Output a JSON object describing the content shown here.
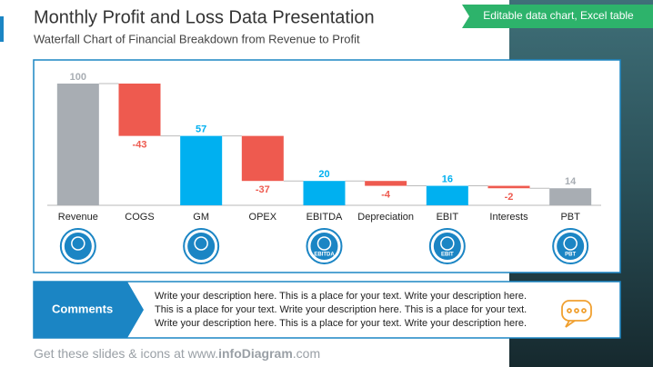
{
  "header": {
    "title": "Monthly Profit and Loss Data Presentation",
    "subtitle": "Waterfall Chart of Financial Breakdown from Revenue to Profit",
    "tag": "Editable data chart, Excel table"
  },
  "chart_data": {
    "type": "waterfall",
    "categories": [
      "Revenue",
      "COGS",
      "GM",
      "OPEX",
      "EBITDA",
      "Depreciation",
      "EBIT",
      "Interests",
      "PBT"
    ],
    "values": [
      100,
      -43,
      57,
      -37,
      20,
      -4,
      16,
      -2,
      14
    ],
    "colors": [
      "#a8adb3",
      "#ee5a4f",
      "#00b0f0",
      "#ee5a4f",
      "#00b0f0",
      "#ee5a4f",
      "#00b0f0",
      "#ee5a4f",
      "#a8adb3"
    ],
    "icon_labels": [
      null,
      null,
      null,
      null,
      "EBITDA",
      null,
      "EBIT",
      null,
      "PBT"
    ]
  },
  "comments": {
    "label": "Comments",
    "lines": [
      "Write your description here. This is a place for your text. Write your description here.",
      "This is a place for your text. Write your description here. This is a place for your text.",
      "Write your description here. This is a place for your text. Write your description here."
    ]
  },
  "footer": {
    "prefix": "Get these slides & icons at www.",
    "brand": "infoDiagram",
    "suffix": ".com"
  }
}
